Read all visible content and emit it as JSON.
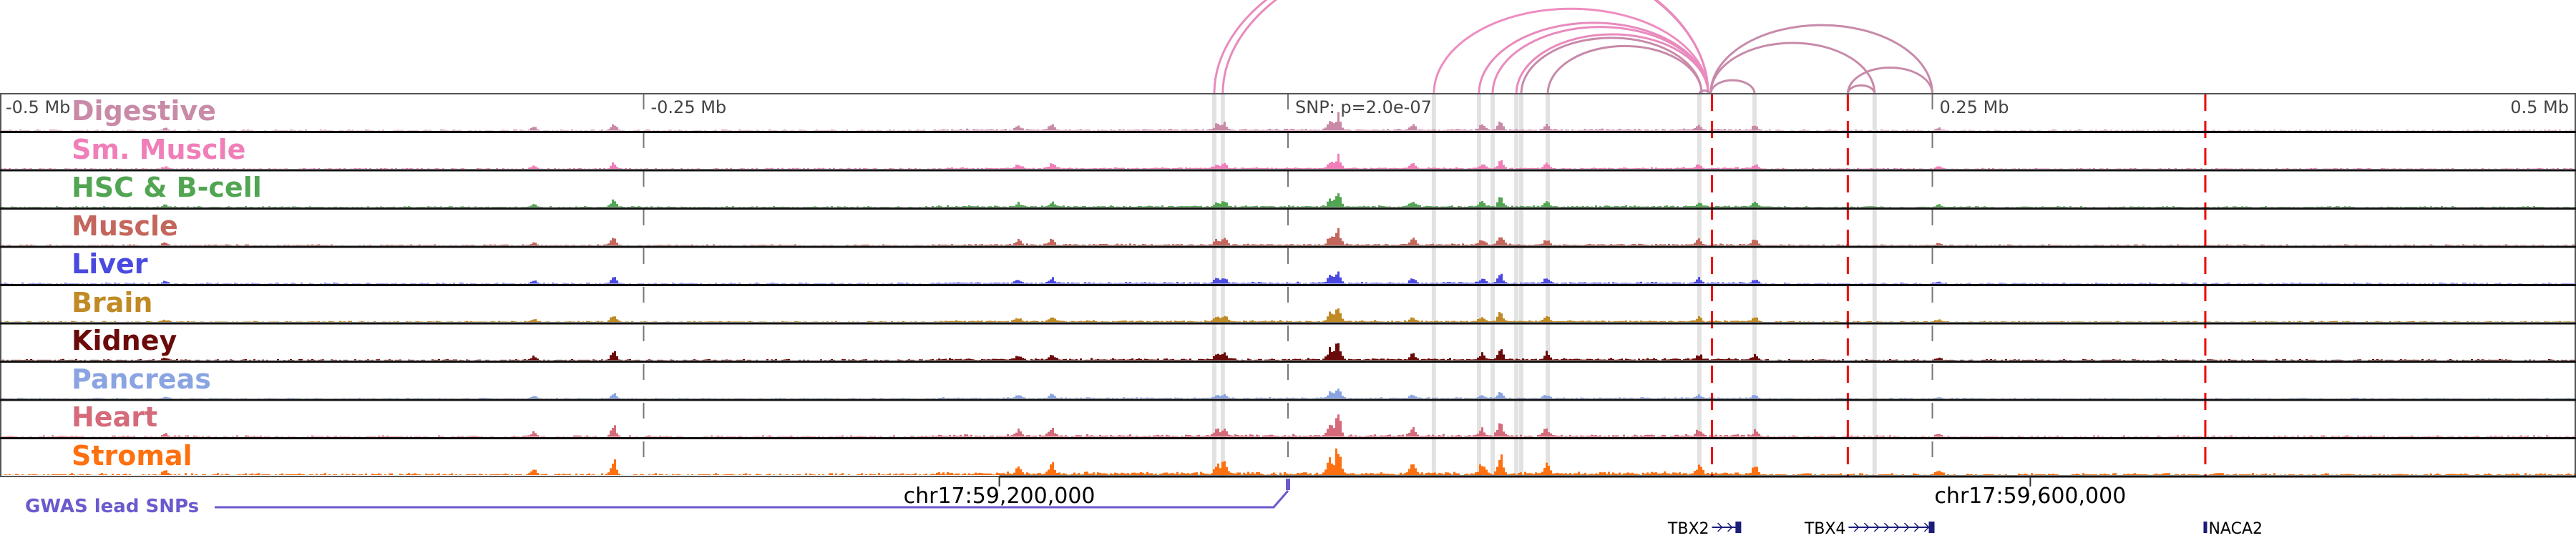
{
  "tracks": [
    {
      "label": "Digestive",
      "color": "#c98aa8",
      "scale": 0.55
    },
    {
      "label": "Sm. Muscle",
      "color": "#f07fb9",
      "scale": 0.45
    },
    {
      "label": "HSC & B-cell",
      "color": "#52a552",
      "scale": 0.5
    },
    {
      "label": "Muscle",
      "color": "#c4665c",
      "scale": 0.55
    },
    {
      "label": "Liver",
      "color": "#4a4ae0",
      "scale": 0.5
    },
    {
      "label": "Brain",
      "color": "#c08a25",
      "scale": 0.5
    },
    {
      "label": "Kidney",
      "color": "#6b0a0a",
      "scale": 0.6
    },
    {
      "label": "Pancreas",
      "color": "#8aa4e2",
      "scale": 0.35
    },
    {
      "label": "Heart",
      "color": "#d46a7a",
      "scale": 0.75
    },
    {
      "label": "Stromal",
      "color": "#ff7010",
      "scale": 1.0
    }
  ],
  "axis_ticks": [
    {
      "label": "-0.5 Mb",
      "kb": -500
    },
    {
      "label": "-0.25 Mb",
      "kb": -250
    },
    {
      "label": "SNP: p=2.0e-07",
      "kb": 0
    },
    {
      "label": "0.25 Mb",
      "kb": 250
    },
    {
      "label": "0.5 Mb",
      "kb": 500
    }
  ],
  "coordinates": [
    {
      "label": "chr17:59,200,000",
      "kb": -112
    },
    {
      "label": "chr17:59,600,000",
      "kb": 288
    }
  ],
  "highlight_kb": [
    -28.6,
    -25.3,
    56.6,
    74.1,
    79.4,
    88.6,
    90.5,
    100.8,
    159.6,
    181.0,
    227.6
  ],
  "red_lines_kb": [
    164.5,
    217.2,
    355.9
  ],
  "peaks": [
    {
      "kb": -436,
      "h": 0.15
    },
    {
      "kb": -293,
      "h": 0.2
    },
    {
      "kb": -262,
      "h": 0.45
    },
    {
      "kb": -105,
      "h": 0.25
    },
    {
      "kb": -92,
      "h": 0.35
    },
    {
      "kb": -28,
      "h": 0.3
    },
    {
      "kb": -25,
      "h": 0.35
    },
    {
      "kb": 16,
      "h": 0.5
    },
    {
      "kb": 19,
      "h": 0.9
    },
    {
      "kb": 48,
      "h": 0.35
    },
    {
      "kb": 75,
      "h": 0.35
    },
    {
      "kb": 82,
      "h": 0.55
    },
    {
      "kb": 100,
      "h": 0.35
    },
    {
      "kb": 159,
      "h": 0.3
    },
    {
      "kb": 181,
      "h": 0.3
    },
    {
      "kb": 252,
      "h": 0.15
    }
  ],
  "loops": [
    {
      "from_kb": -28.6,
      "to_kb": 163.0,
      "color": "#e98abd"
    },
    {
      "from_kb": -25.3,
      "to_kb": 163.0,
      "color": "#e98abd"
    },
    {
      "from_kb": 56.6,
      "to_kb": 163.0,
      "color": "#ee8dc0"
    },
    {
      "from_kb": 74.1,
      "to_kb": 163.0,
      "color": "#e98abd"
    },
    {
      "from_kb": 79.4,
      "to_kb": 163.0,
      "color": "#e98abd"
    },
    {
      "from_kb": 88.6,
      "to_kb": 163.0,
      "color": "#e98abd"
    },
    {
      "from_kb": 90.5,
      "to_kb": 160.5,
      "color": "#c88aaa"
    },
    {
      "from_kb": 100.8,
      "to_kb": 160.5,
      "color": "#c88aaa"
    },
    {
      "from_kb": 159.6,
      "to_kb": 163.5,
      "color": "#c88aaa"
    },
    {
      "from_kb": 164.0,
      "to_kb": 181.0,
      "color": "#c88aaa"
    },
    {
      "from_kb": 164.0,
      "to_kb": 227.6,
      "color": "#c88aaa"
    },
    {
      "from_kb": 164.0,
      "to_kb": 250.0,
      "color": "#c88aaa"
    },
    {
      "from_kb": 217.2,
      "to_kb": 227.6,
      "color": "#c88aaa"
    },
    {
      "from_kb": 217.2,
      "to_kb": 250.0,
      "color": "#c88aaa"
    }
  ],
  "gwas": {
    "label": "GWAS lead SNPs",
    "color": "#6a5acd",
    "snp_kb": 0
  },
  "genes": [
    {
      "name": "TBX2",
      "start_kb": 164.5,
      "end_kb": 175.0
    },
    {
      "name": "TBX4",
      "start_kb": 217.5,
      "end_kb": 250.0
    },
    {
      "name": "NACA2",
      "start_kb": 355.9,
      "end_kb": 356.6
    }
  ]
}
